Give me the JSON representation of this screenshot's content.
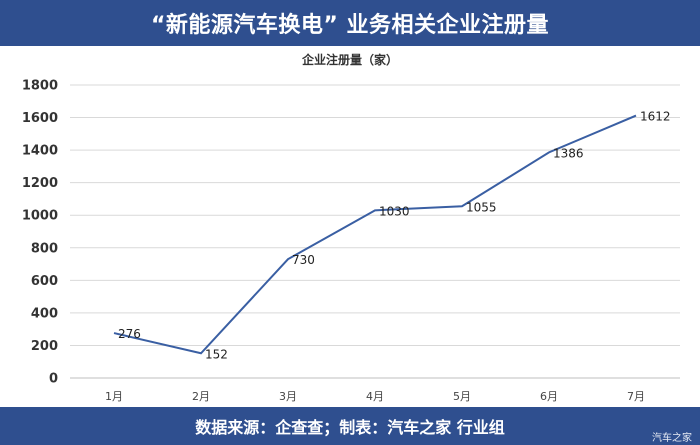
{
  "header": {
    "title": "“新能源汽车换电” 业务相关企业注册量"
  },
  "footer": {
    "source": "数据来源：企查查；制表：汽车之家 行业组"
  },
  "watermark": "汽车之家",
  "colors": {
    "banner": "#2f4f8f",
    "series": "#3a5fa3"
  },
  "chart_data": {
    "type": "line",
    "title": "企业注册量（家）",
    "xlabel": "",
    "ylabel": "",
    "categories": [
      "1月",
      "2月",
      "3月",
      "4月",
      "5月",
      "6月",
      "7月"
    ],
    "values": [
      276,
      152,
      730,
      1030,
      1055,
      1386,
      1612
    ],
    "data_labels": [
      "276",
      "152",
      "730",
      "1030",
      "1055",
      "1386",
      "1612"
    ],
    "ylim": [
      0,
      1800
    ],
    "yticks": [
      "0",
      "200",
      "400",
      "600",
      "800",
      "1000",
      "1200",
      "1400",
      "1600",
      "1800"
    ],
    "grid": true,
    "legend": "none"
  }
}
